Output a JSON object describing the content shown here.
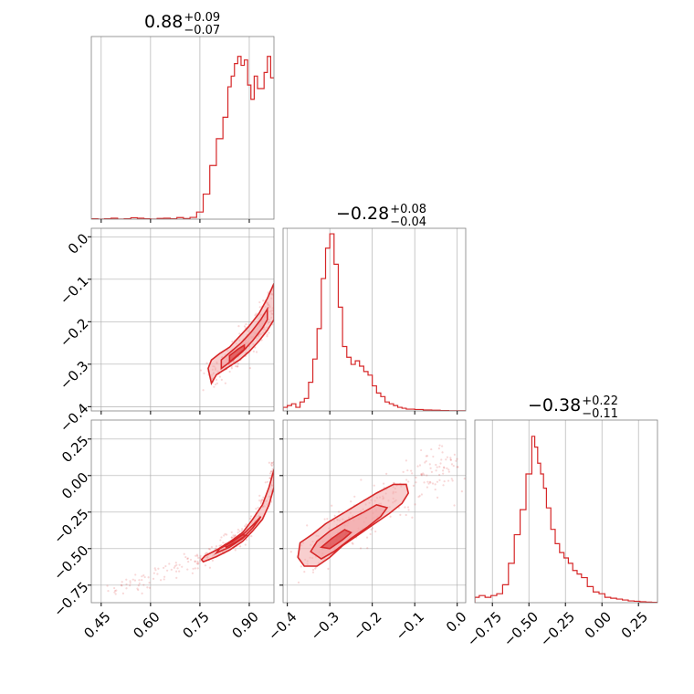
{
  "colors": {
    "accent": "#d62728",
    "fill": "#f2a7a8",
    "grid": "#b0b0b0",
    "frame": "#7f7f7f"
  },
  "chart_data": {
    "type": "corner",
    "variables": [
      {
        "title_main": "0.88",
        "title_plus": "+0.09",
        "title_minus": "−0.07",
        "range": [
          0.42,
          0.975
        ],
        "ticks": [
          0.45,
          0.6,
          0.75,
          0.9
        ],
        "tick_labels": [
          "0.45",
          "0.60",
          "0.75",
          "0.90"
        ],
        "hist": {
          "bins": [
            [
              0.42,
              0.002
            ],
            [
              0.44,
              0.0
            ],
            [
              0.46,
              0.002
            ],
            [
              0.48,
              0.005
            ],
            [
              0.5,
              0.0
            ],
            [
              0.52,
              0.002
            ],
            [
              0.54,
              0.008
            ],
            [
              0.56,
              0.005
            ],
            [
              0.58,
              0.002
            ],
            [
              0.6,
              0.0
            ],
            [
              0.62,
              0.004
            ],
            [
              0.64,
              0.005
            ],
            [
              0.66,
              0.002
            ],
            [
              0.68,
              0.009
            ],
            [
              0.7,
              0.003
            ],
            [
              0.72,
              0.01
            ],
            [
              0.74,
              0.04
            ],
            [
              0.76,
              0.14
            ],
            [
              0.78,
              0.3
            ],
            [
              0.8,
              0.45
            ],
            [
              0.82,
              0.57
            ],
            [
              0.835,
              0.74
            ],
            [
              0.845,
              0.8
            ],
            [
              0.855,
              0.87
            ],
            [
              0.865,
              0.91
            ],
            [
              0.875,
              0.86
            ],
            [
              0.885,
              0.89
            ],
            [
              0.895,
              0.75
            ],
            [
              0.905,
              0.67
            ],
            [
              0.915,
              0.8
            ],
            [
              0.925,
              0.73
            ],
            [
              0.935,
              0.73
            ],
            [
              0.945,
              0.82
            ],
            [
              0.955,
              0.91
            ],
            [
              0.965,
              0.79
            ]
          ],
          "end": 0.975
        }
      },
      {
        "title_main": "−0.28",
        "title_plus": "+0.08",
        "title_minus": "−0.04",
        "range": [
          -0.41,
          0.02
        ],
        "ticks": [
          -0.4,
          -0.3,
          -0.2,
          -0.1,
          0.0
        ],
        "tick_labels": [
          "−0.4",
          "−0.3",
          "−0.2",
          "−0.1",
          "0.0"
        ],
        "hist": {
          "bins": [
            [
              -0.41,
              0.02
            ],
            [
              -0.4,
              0.03
            ],
            [
              -0.39,
              0.04
            ],
            [
              -0.38,
              0.02
            ],
            [
              -0.37,
              0.05
            ],
            [
              -0.36,
              0.07
            ],
            [
              -0.35,
              0.16
            ],
            [
              -0.34,
              0.29
            ],
            [
              -0.33,
              0.46
            ],
            [
              -0.32,
              0.74
            ],
            [
              -0.31,
              0.91
            ],
            [
              -0.3,
              0.99
            ],
            [
              -0.29,
              0.82
            ],
            [
              -0.28,
              0.58
            ],
            [
              -0.27,
              0.36
            ],
            [
              -0.26,
              0.3
            ],
            [
              -0.25,
              0.26
            ],
            [
              -0.24,
              0.28
            ],
            [
              -0.23,
              0.25
            ],
            [
              -0.22,
              0.22
            ],
            [
              -0.21,
              0.2
            ],
            [
              -0.2,
              0.14
            ],
            [
              -0.19,
              0.1
            ],
            [
              -0.18,
              0.08
            ],
            [
              -0.17,
              0.05
            ],
            [
              -0.16,
              0.04
            ],
            [
              -0.15,
              0.03
            ],
            [
              -0.14,
              0.02
            ],
            [
              -0.13,
              0.015
            ],
            [
              -0.12,
              0.01
            ],
            [
              -0.1,
              0.008
            ],
            [
              -0.08,
              0.005
            ],
            [
              -0.06,
              0.004
            ],
            [
              -0.04,
              0.002
            ],
            [
              -0.02,
              0.001
            ]
          ],
          "end": 0.02
        }
      },
      {
        "title_main": "−0.38",
        "title_plus": "+0.22",
        "title_minus": "−0.11",
        "range": [
          -0.87,
          0.38
        ],
        "ticks": [
          -0.75,
          -0.5,
          -0.25,
          0.0,
          0.25
        ],
        "tick_labels": [
          "−0.75",
          "−0.50",
          "−0.25",
          "0.00",
          "0.25"
        ],
        "hist": {
          "bins": [
            [
              -0.87,
              0.03
            ],
            [
              -0.84,
              0.04
            ],
            [
              -0.8,
              0.03
            ],
            [
              -0.76,
              0.04
            ],
            [
              -0.72,
              0.05
            ],
            [
              -0.68,
              0.1
            ],
            [
              -0.64,
              0.22
            ],
            [
              -0.6,
              0.38
            ],
            [
              -0.56,
              0.52
            ],
            [
              -0.52,
              0.72
            ],
            [
              -0.48,
              0.93
            ],
            [
              -0.46,
              0.87
            ],
            [
              -0.44,
              0.78
            ],
            [
              -0.42,
              0.72
            ],
            [
              -0.4,
              0.64
            ],
            [
              -0.38,
              0.53
            ],
            [
              -0.35,
              0.41
            ],
            [
              -0.32,
              0.33
            ],
            [
              -0.29,
              0.28
            ],
            [
              -0.26,
              0.25
            ],
            [
              -0.23,
              0.22
            ],
            [
              -0.2,
              0.18
            ],
            [
              -0.17,
              0.16
            ],
            [
              -0.14,
              0.14
            ],
            [
              -0.1,
              0.09
            ],
            [
              -0.06,
              0.06
            ],
            [
              -0.02,
              0.05
            ],
            [
              0.02,
              0.03
            ],
            [
              0.06,
              0.025
            ],
            [
              0.1,
              0.02
            ],
            [
              0.14,
              0.015
            ],
            [
              0.18,
              0.01
            ],
            [
              0.22,
              0.008
            ],
            [
              0.26,
              0.005
            ],
            [
              0.3,
              0.003
            ],
            [
              0.34,
              0.002
            ]
          ],
          "end": 0.38
        }
      }
    ],
    "pairs": [
      {
        "x_var": 0,
        "y_var": 1,
        "y_range": [
          -0.41,
          0.02
        ],
        "y_ticks": [
          0.0,
          -0.1,
          -0.2,
          -0.3,
          -0.4
        ],
        "y_tick_labels": [
          "0.0",
          "−0.1",
          "−0.2",
          "−0.3",
          "−0.4"
        ],
        "ridge": [
          [
            0.78,
            -0.33
          ],
          [
            0.82,
            -0.305
          ],
          [
            0.86,
            -0.28
          ],
          [
            0.9,
            -0.25
          ],
          [
            0.93,
            -0.22
          ],
          [
            0.955,
            -0.19
          ],
          [
            0.975,
            -0.135
          ]
        ],
        "outer": [
          [
            0.785,
            -0.345
          ],
          [
            0.8,
            -0.325
          ],
          [
            0.84,
            -0.305
          ],
          [
            0.87,
            -0.29
          ],
          [
            0.9,
            -0.27
          ],
          [
            0.93,
            -0.245
          ],
          [
            0.955,
            -0.22
          ],
          [
            0.975,
            -0.195
          ],
          [
            0.975,
            -0.11
          ],
          [
            0.955,
            -0.145
          ],
          [
            0.93,
            -0.18
          ],
          [
            0.9,
            -0.21
          ],
          [
            0.87,
            -0.235
          ],
          [
            0.84,
            -0.26
          ],
          [
            0.81,
            -0.275
          ],
          [
            0.785,
            -0.29
          ],
          [
            0.775,
            -0.31
          ]
        ],
        "inner": [
          [
            0.815,
            -0.31
          ],
          [
            0.85,
            -0.29
          ],
          [
            0.88,
            -0.27
          ],
          [
            0.91,
            -0.245
          ],
          [
            0.94,
            -0.215
          ],
          [
            0.955,
            -0.195
          ],
          [
            0.955,
            -0.17
          ],
          [
            0.935,
            -0.195
          ],
          [
            0.905,
            -0.225
          ],
          [
            0.875,
            -0.25
          ],
          [
            0.845,
            -0.27
          ],
          [
            0.815,
            -0.29
          ]
        ],
        "core": [
          [
            0.84,
            -0.295
          ],
          [
            0.87,
            -0.275
          ],
          [
            0.885,
            -0.265
          ],
          [
            0.885,
            -0.255
          ],
          [
            0.865,
            -0.265
          ],
          [
            0.84,
            -0.28
          ]
        ],
        "scatter_spread": [
          0.03,
          0.03
        ]
      },
      {
        "x_var": 0,
        "y_var": 2,
        "y_range": [
          -0.87,
          0.38
        ],
        "y_ticks": [
          0.25,
          0.0,
          -0.25,
          -0.5,
          -0.75
        ],
        "y_tick_labels": [
          "0.25",
          "0.00",
          "−0.25",
          "−0.50",
          "−0.75"
        ],
        "ridge": [
          [
            0.48,
            -0.8
          ],
          [
            0.55,
            -0.74
          ],
          [
            0.62,
            -0.68
          ],
          [
            0.68,
            -0.63
          ],
          [
            0.74,
            -0.58
          ],
          [
            0.78,
            -0.54
          ],
          [
            0.82,
            -0.49
          ],
          [
            0.86,
            -0.43
          ],
          [
            0.9,
            -0.35
          ],
          [
            0.93,
            -0.26
          ],
          [
            0.955,
            -0.15
          ],
          [
            0.97,
            -0.02
          ],
          [
            0.975,
            0.1
          ]
        ],
        "outer": [
          [
            0.76,
            -0.59
          ],
          [
            0.8,
            -0.555
          ],
          [
            0.84,
            -0.51
          ],
          [
            0.88,
            -0.45
          ],
          [
            0.91,
            -0.38
          ],
          [
            0.94,
            -0.3
          ],
          [
            0.96,
            -0.2
          ],
          [
            0.975,
            -0.08
          ],
          [
            0.975,
            0.04
          ],
          [
            0.96,
            -0.08
          ],
          [
            0.94,
            -0.2
          ],
          [
            0.91,
            -0.3
          ],
          [
            0.88,
            -0.39
          ],
          [
            0.84,
            -0.455
          ],
          [
            0.8,
            -0.51
          ],
          [
            0.765,
            -0.55
          ],
          [
            0.755,
            -0.575
          ]
        ],
        "inner": [
          [
            0.8,
            -0.53
          ],
          [
            0.84,
            -0.49
          ],
          [
            0.88,
            -0.43
          ],
          [
            0.91,
            -0.36
          ],
          [
            0.93,
            -0.3
          ],
          [
            0.935,
            -0.28
          ],
          [
            0.915,
            -0.33
          ],
          [
            0.885,
            -0.395
          ],
          [
            0.85,
            -0.45
          ],
          [
            0.81,
            -0.5
          ]
        ],
        "core": [
          [
            0.83,
            -0.49
          ],
          [
            0.86,
            -0.455
          ],
          [
            0.89,
            -0.41
          ],
          [
            0.88,
            -0.405
          ],
          [
            0.855,
            -0.44
          ],
          [
            0.825,
            -0.475
          ]
        ],
        "scatter_spread": [
          0.015,
          0.03
        ]
      },
      {
        "x_var": 1,
        "y_var": 2,
        "y_range": [
          -0.87,
          0.38
        ],
        "y_ticks": [
          0.25,
          0.0,
          -0.25,
          -0.5,
          -0.75
        ],
        "y_tick_labels": [
          "0.25",
          "0.00",
          "−0.25",
          "−0.50",
          "−0.75"
        ],
        "ridge": [
          [
            -0.37,
            -0.6
          ],
          [
            -0.33,
            -0.5
          ],
          [
            -0.29,
            -0.42
          ],
          [
            -0.25,
            -0.33
          ],
          [
            -0.21,
            -0.25
          ],
          [
            -0.17,
            -0.17
          ],
          [
            -0.13,
            -0.1
          ],
          [
            -0.09,
            -0.03
          ],
          [
            -0.05,
            0.03
          ],
          [
            -0.01,
            0.08
          ]
        ],
        "outer": [
          [
            -0.375,
            -0.56
          ],
          [
            -0.36,
            -0.62
          ],
          [
            -0.33,
            -0.62
          ],
          [
            -0.3,
            -0.56
          ],
          [
            -0.27,
            -0.48
          ],
          [
            -0.23,
            -0.4
          ],
          [
            -0.19,
            -0.32
          ],
          [
            -0.16,
            -0.26
          ],
          [
            -0.13,
            -0.19
          ],
          [
            -0.115,
            -0.12
          ],
          [
            -0.12,
            -0.06
          ],
          [
            -0.15,
            -0.06
          ],
          [
            -0.19,
            -0.12
          ],
          [
            -0.23,
            -0.19
          ],
          [
            -0.27,
            -0.26
          ],
          [
            -0.31,
            -0.33
          ],
          [
            -0.34,
            -0.4
          ],
          [
            -0.37,
            -0.46
          ]
        ],
        "inner": [
          [
            -0.345,
            -0.52
          ],
          [
            -0.32,
            -0.57
          ],
          [
            -0.29,
            -0.52
          ],
          [
            -0.25,
            -0.43
          ],
          [
            -0.21,
            -0.35
          ],
          [
            -0.18,
            -0.28
          ],
          [
            -0.165,
            -0.22
          ],
          [
            -0.19,
            -0.2
          ],
          [
            -0.22,
            -0.25
          ],
          [
            -0.26,
            -0.31
          ],
          [
            -0.3,
            -0.38
          ],
          [
            -0.33,
            -0.45
          ]
        ],
        "core": [
          [
            -0.32,
            -0.49
          ],
          [
            -0.3,
            -0.5
          ],
          [
            -0.27,
            -0.44
          ],
          [
            -0.25,
            -0.39
          ],
          [
            -0.265,
            -0.37
          ],
          [
            -0.295,
            -0.43
          ]
        ],
        "scatter_spread": [
          0.04,
          0.07
        ]
      }
    ]
  }
}
